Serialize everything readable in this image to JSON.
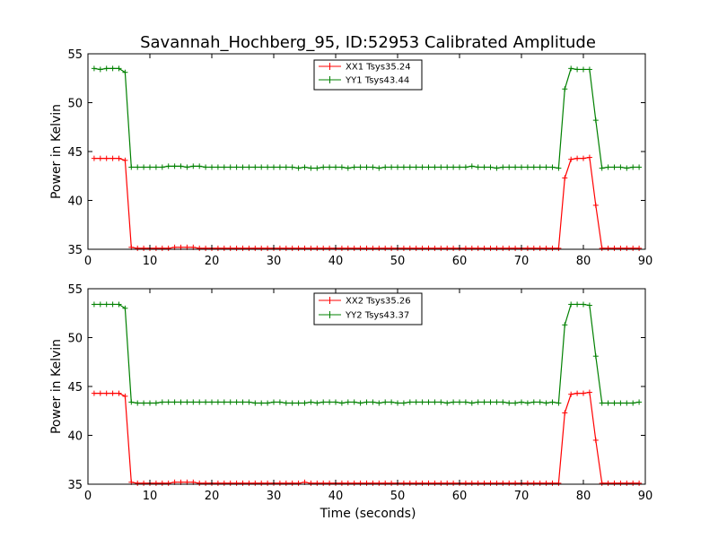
{
  "chart_data": [
    {
      "type": "line",
      "title": "Savannah_Hochberg_95, ID:52953 Calibrated Amplitude",
      "xlabel": "",
      "ylabel": "Power in Kelvin",
      "xlim": [
        0,
        90
      ],
      "ylim": [
        35,
        55
      ],
      "xticks": [
        "0",
        "10",
        "20",
        "30",
        "40",
        "50",
        "60",
        "70",
        "80",
        "90"
      ],
      "yticks": [
        "35",
        "40",
        "45",
        "50",
        "55"
      ],
      "grid": false,
      "legend_position": "top-center",
      "x": [
        1,
        2,
        3,
        4,
        5,
        6,
        7,
        8,
        9,
        10,
        11,
        12,
        13,
        14,
        15,
        16,
        17,
        18,
        19,
        20,
        21,
        22,
        23,
        24,
        25,
        26,
        27,
        28,
        29,
        30,
        31,
        32,
        33,
        34,
        35,
        36,
        37,
        38,
        39,
        40,
        41,
        42,
        43,
        44,
        45,
        46,
        47,
        48,
        49,
        50,
        51,
        52,
        53,
        54,
        55,
        56,
        57,
        58,
        59,
        60,
        61,
        62,
        63,
        64,
        65,
        66,
        67,
        68,
        69,
        70,
        71,
        72,
        73,
        74,
        75,
        76,
        77,
        78,
        79,
        80,
        81,
        82,
        83,
        84,
        85,
        86,
        87,
        88,
        89
      ],
      "series": [
        {
          "name": "XX1 Tsys35.24",
          "color": "#ff0000",
          "values": [
            44.3,
            44.3,
            44.3,
            44.3,
            44.3,
            44.1,
            35.2,
            35.1,
            35.1,
            35.1,
            35.1,
            35.1,
            35.1,
            35.2,
            35.2,
            35.2,
            35.2,
            35.1,
            35.1,
            35.1,
            35.1,
            35.1,
            35.1,
            35.1,
            35.1,
            35.1,
            35.1,
            35.1,
            35.1,
            35.1,
            35.1,
            35.1,
            35.1,
            35.1,
            35.1,
            35.1,
            35.1,
            35.1,
            35.1,
            35.1,
            35.1,
            35.1,
            35.1,
            35.1,
            35.1,
            35.1,
            35.1,
            35.1,
            35.1,
            35.1,
            35.1,
            35.1,
            35.1,
            35.1,
            35.1,
            35.1,
            35.1,
            35.1,
            35.1,
            35.1,
            35.1,
            35.1,
            35.1,
            35.1,
            35.1,
            35.1,
            35.1,
            35.1,
            35.1,
            35.1,
            35.1,
            35.1,
            35.1,
            35.1,
            35.1,
            35.1,
            42.3,
            44.2,
            44.3,
            44.3,
            44.4,
            39.5,
            35.1,
            35.1,
            35.1,
            35.1,
            35.1,
            35.1,
            35.1
          ]
        },
        {
          "name": "YY1 Tsys43.44",
          "color": "#008000",
          "values": [
            53.5,
            53.4,
            53.5,
            53.5,
            53.5,
            53.1,
            43.4,
            43.4,
            43.4,
            43.4,
            43.4,
            43.4,
            43.5,
            43.5,
            43.5,
            43.4,
            43.5,
            43.5,
            43.4,
            43.4,
            43.4,
            43.4,
            43.4,
            43.4,
            43.4,
            43.4,
            43.4,
            43.4,
            43.4,
            43.4,
            43.4,
            43.4,
            43.4,
            43.3,
            43.4,
            43.3,
            43.3,
            43.4,
            43.4,
            43.4,
            43.4,
            43.3,
            43.4,
            43.4,
            43.4,
            43.4,
            43.3,
            43.4,
            43.4,
            43.4,
            43.4,
            43.4,
            43.4,
            43.4,
            43.4,
            43.4,
            43.4,
            43.4,
            43.4,
            43.4,
            43.4,
            43.5,
            43.4,
            43.4,
            43.4,
            43.3,
            43.4,
            43.4,
            43.4,
            43.4,
            43.4,
            43.4,
            43.4,
            43.4,
            43.4,
            43.3,
            51.4,
            53.5,
            53.4,
            53.4,
            53.4,
            48.2,
            43.3,
            43.4,
            43.4,
            43.4,
            43.3,
            43.4,
            43.4
          ]
        }
      ]
    },
    {
      "type": "line",
      "title": "",
      "xlabel": "Time (seconds)",
      "ylabel": "Power in Kelvin",
      "xlim": [
        0,
        90
      ],
      "ylim": [
        35,
        55
      ],
      "xticks": [
        "0",
        "10",
        "20",
        "30",
        "40",
        "50",
        "60",
        "70",
        "80",
        "90"
      ],
      "yticks": [
        "35",
        "40",
        "45",
        "50",
        "55"
      ],
      "grid": false,
      "legend_position": "top-center",
      "x": [
        1,
        2,
        3,
        4,
        5,
        6,
        7,
        8,
        9,
        10,
        11,
        12,
        13,
        14,
        15,
        16,
        17,
        18,
        19,
        20,
        21,
        22,
        23,
        24,
        25,
        26,
        27,
        28,
        29,
        30,
        31,
        32,
        33,
        34,
        35,
        36,
        37,
        38,
        39,
        40,
        41,
        42,
        43,
        44,
        45,
        46,
        47,
        48,
        49,
        50,
        51,
        52,
        53,
        54,
        55,
        56,
        57,
        58,
        59,
        60,
        61,
        62,
        63,
        64,
        65,
        66,
        67,
        68,
        69,
        70,
        71,
        72,
        73,
        74,
        75,
        76,
        77,
        78,
        79,
        80,
        81,
        82,
        83,
        84,
        85,
        86,
        87,
        88,
        89
      ],
      "series": [
        {
          "name": "XX2 Tsys35.26",
          "color": "#ff0000",
          "values": [
            44.3,
            44.3,
            44.3,
            44.3,
            44.3,
            44.0,
            35.2,
            35.1,
            35.1,
            35.1,
            35.1,
            35.1,
            35.1,
            35.2,
            35.2,
            35.2,
            35.2,
            35.1,
            35.1,
            35.1,
            35.1,
            35.1,
            35.1,
            35.1,
            35.1,
            35.1,
            35.1,
            35.1,
            35.1,
            35.1,
            35.1,
            35.1,
            35.1,
            35.1,
            35.2,
            35.1,
            35.1,
            35.1,
            35.1,
            35.1,
            35.1,
            35.1,
            35.1,
            35.1,
            35.1,
            35.1,
            35.1,
            35.1,
            35.1,
            35.1,
            35.1,
            35.1,
            35.1,
            35.1,
            35.1,
            35.1,
            35.1,
            35.1,
            35.1,
            35.1,
            35.1,
            35.1,
            35.1,
            35.1,
            35.1,
            35.1,
            35.1,
            35.1,
            35.1,
            35.1,
            35.1,
            35.1,
            35.1,
            35.1,
            35.1,
            35.1,
            42.3,
            44.2,
            44.3,
            44.3,
            44.4,
            39.5,
            35.1,
            35.1,
            35.1,
            35.1,
            35.1,
            35.1,
            35.1
          ]
        },
        {
          "name": "YY2 Tsys43.37",
          "color": "#008000",
          "values": [
            53.4,
            53.4,
            53.4,
            53.4,
            53.4,
            53.0,
            43.4,
            43.3,
            43.3,
            43.3,
            43.3,
            43.4,
            43.4,
            43.4,
            43.4,
            43.4,
            43.4,
            43.4,
            43.4,
            43.4,
            43.4,
            43.4,
            43.4,
            43.4,
            43.4,
            43.4,
            43.3,
            43.3,
            43.3,
            43.4,
            43.4,
            43.3,
            43.3,
            43.3,
            43.3,
            43.4,
            43.3,
            43.4,
            43.4,
            43.4,
            43.3,
            43.4,
            43.4,
            43.3,
            43.4,
            43.4,
            43.3,
            43.4,
            43.4,
            43.3,
            43.3,
            43.4,
            43.4,
            43.4,
            43.4,
            43.4,
            43.4,
            43.3,
            43.4,
            43.4,
            43.4,
            43.3,
            43.4,
            43.4,
            43.4,
            43.4,
            43.4,
            43.3,
            43.3,
            43.4,
            43.3,
            43.4,
            43.4,
            43.3,
            43.4,
            43.3,
            51.3,
            53.4,
            53.4,
            53.4,
            53.3,
            48.1,
            43.3,
            43.3,
            43.3,
            43.3,
            43.3,
            43.3,
            43.4
          ]
        }
      ]
    }
  ]
}
